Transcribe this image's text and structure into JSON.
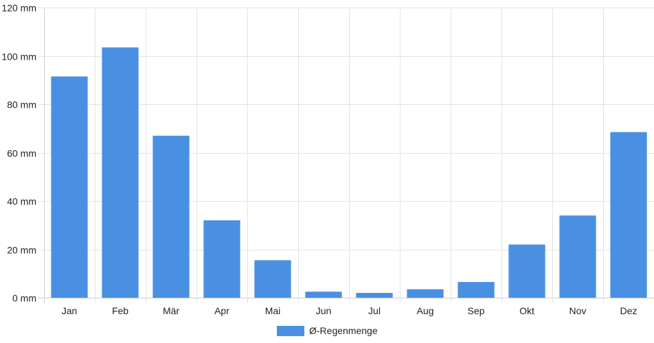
{
  "chart_data": {
    "type": "bar",
    "categories": [
      "Jan",
      "Feb",
      "Mär",
      "Apr",
      "Mai",
      "Jun",
      "Jul",
      "Aug",
      "Sep",
      "Okt",
      "Nov",
      "Dez"
    ],
    "series": [
      {
        "name": "Ø-Regenmenge",
        "values": [
          91.5,
          103.5,
          67,
          32,
          15.5,
          2.5,
          2,
          3.5,
          6.5,
          22,
          34,
          68.5
        ]
      }
    ],
    "y_unit": " mm",
    "ylim": [
      0,
      120
    ],
    "y_ticks": [
      0,
      20,
      40,
      60,
      80,
      100,
      120
    ],
    "grid": true,
    "legend_position": "bottom",
    "colors": {
      "bar": "#4a90e2",
      "grid": "#e3e3e3",
      "axis": "#cccccc"
    }
  }
}
